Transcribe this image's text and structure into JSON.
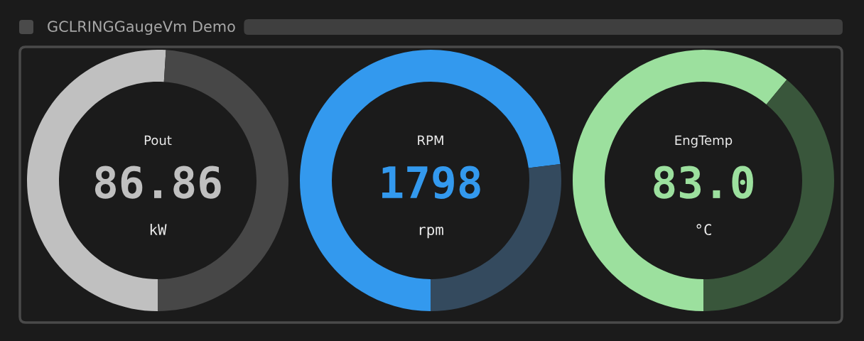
{
  "chart_data": [
    {
      "type": "other",
      "title": "GCLRINGGaugeVm Demo"
    },
    {
      "type": "donut",
      "title": "Pout",
      "categories": [
        null,
        null
      ],
      "values": [
        51,
        49
      ],
      "colors": [
        "#c0c0c0",
        "#474747"
      ],
      "annotations": [
        "86.86",
        "kW"
      ]
    },
    {
      "type": "donut",
      "title": "RPM",
      "categories": [
        null,
        null
      ],
      "values": [
        73,
        27
      ],
      "colors": [
        "#3399ee",
        "#344a5e"
      ],
      "annotations": [
        "1798",
        "rpm"
      ]
    },
    {
      "type": "donut",
      "title": "EngTemp",
      "categories": [
        null,
        null
      ],
      "values": [
        61,
        39
      ],
      "colors": [
        "#9ce09e",
        "#39563b"
      ],
      "annotations": [
        "83.0",
        "°C"
      ]
    }
  ]
}
